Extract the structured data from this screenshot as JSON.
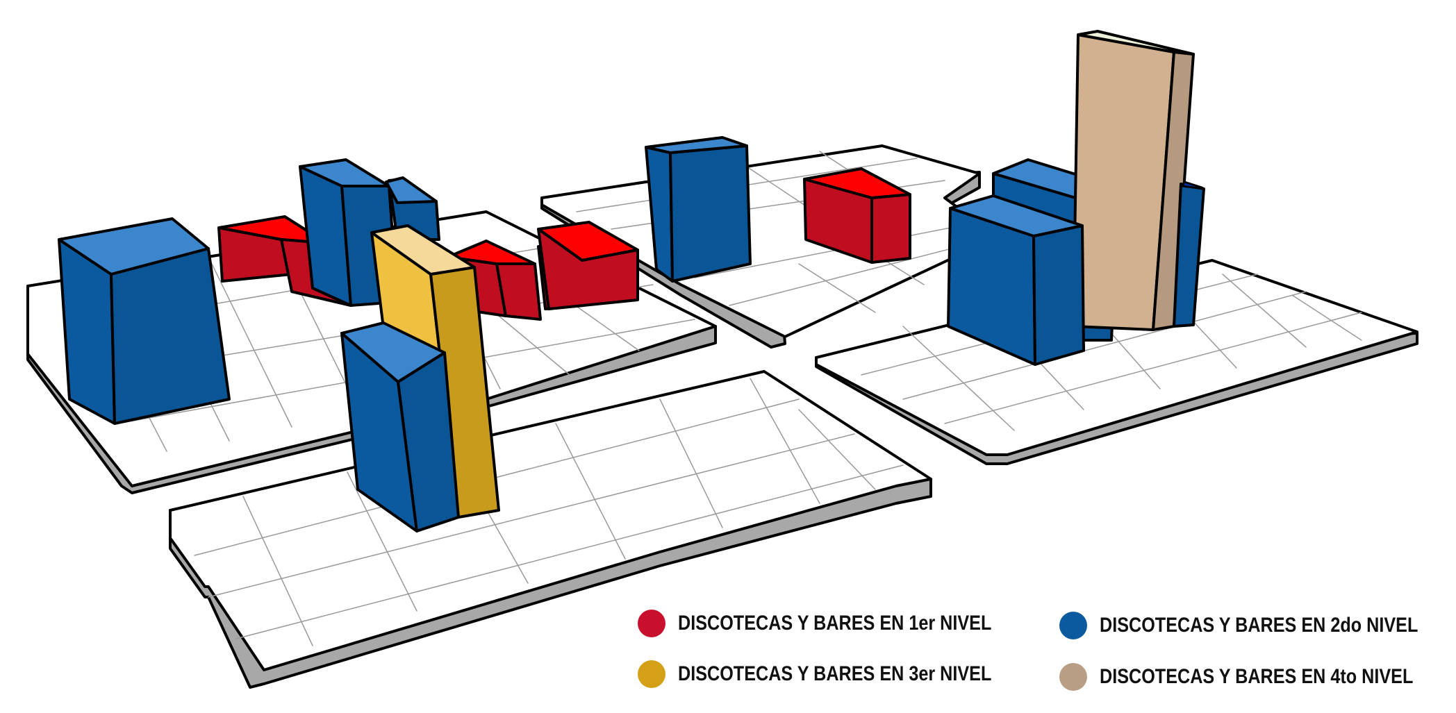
{
  "colors": {
    "level1": "#c8102e",
    "level2": "#0b5aa0",
    "level3": "#d4a017",
    "level4": "#b89e84",
    "plot_top": "#ffffff",
    "plot_side": "#9b9b9b",
    "outline": "#000000"
  },
  "legend": {
    "items": [
      {
        "label": "DISCOTECAS Y BARES EN 1er NIVEL",
        "color": "#c8102e"
      },
      {
        "label": "DISCOTECAS Y BARES EN 2do NIVEL",
        "color": "#0b5aa0"
      },
      {
        "label": "DISCOTECAS Y BARES EN 3er NIVEL",
        "color": "#d4a017"
      },
      {
        "label": "DISCOTECAS Y BARES EN 4to NIVEL",
        "color": "#b89e84"
      }
    ]
  }
}
